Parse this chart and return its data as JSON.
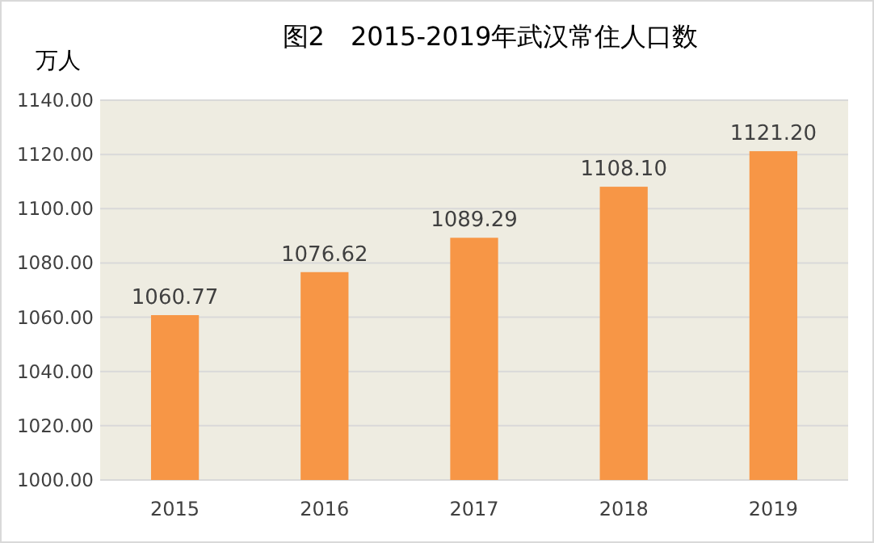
{
  "chart_data": {
    "type": "bar",
    "title": "图2　2015-2019年武汉常住人口数",
    "ylabel": "万人",
    "categories": [
      "2015",
      "2016",
      "2017",
      "2018",
      "2019"
    ],
    "values": [
      1060.77,
      1076.62,
      1089.29,
      1108.1,
      1121.2
    ],
    "value_labels": [
      "1060.77",
      "1076.62",
      "1089.29",
      "1108.10",
      "1121.20"
    ],
    "color": "#f79646",
    "ylim": [
      1000,
      1140
    ],
    "yticks": [
      {
        "value": 1000,
        "label": "1000.00"
      },
      {
        "value": 1020,
        "label": "1020.00"
      },
      {
        "value": 1040,
        "label": "1040.00"
      },
      {
        "value": 1060,
        "label": "1060.00"
      },
      {
        "value": 1080,
        "label": "1080.00"
      },
      {
        "value": 1100,
        "label": "1100.00"
      },
      {
        "value": 1120,
        "label": "1120.00"
      },
      {
        "value": 1140,
        "label": "1140.00"
      }
    ],
    "grid": "y"
  }
}
